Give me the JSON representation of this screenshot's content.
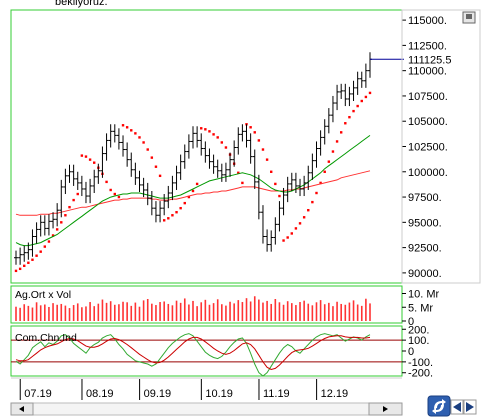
{
  "header_caption": "bekliyoruz.",
  "current_value_label": "111125.5",
  "colors": {
    "frame": "#33cc33",
    "bar": "#000000",
    "sar_dots": "#ff0000",
    "ma_long": "#ff3333",
    "ma_short": "#009900",
    "cci_line": "#33aa33",
    "cci_signal": "#cc0000",
    "cci_levels": "#990000",
    "current_line": "#000099",
    "volume_bar": "#ff3333"
  },
  "chart_data": [
    {
      "type": "line",
      "panel": "price",
      "y_ticks": [
        "115000.",
        "112500.",
        "110000.",
        "107500.",
        "105000.",
        "102500.",
        "100000.",
        "97500.",
        "95000.",
        "92500.",
        "90000."
      ],
      "ylim": [
        89000,
        116000
      ],
      "x_ticks": [
        "07.19",
        "08.19",
        "09.19",
        "10.19",
        "11.19",
        "12.19"
      ],
      "last_value": 111125.5,
      "series": [
        {
          "series_type": "ohlc",
          "close": [
            91500,
            91800,
            92000,
            92300,
            93600,
            94300,
            95000,
            94400,
            95100,
            95300,
            96200,
            98500,
            99600,
            100000,
            99300,
            98900,
            98300,
            97600,
            98600,
            99500,
            100100,
            101800,
            103100,
            104000,
            103600,
            102900,
            102200,
            101200,
            100200,
            99400,
            98700,
            98200,
            97400,
            96400,
            95700,
            96400,
            97100,
            97900,
            98900,
            99900,
            101000,
            102000,
            103000,
            103800,
            103100,
            102300,
            101600,
            101000,
            100500,
            100100,
            99700,
            100200,
            101200,
            102400,
            103700,
            104000,
            103100,
            101500,
            99000,
            96000,
            93600,
            92800,
            93500,
            94800,
            96400,
            97700,
            98800,
            99200,
            98600,
            98300,
            98900,
            99900,
            101100,
            102300,
            103400,
            104500,
            105600,
            106800,
            107900,
            108000,
            107200,
            107700,
            108300,
            109200,
            109000,
            110000,
            111125
          ]
        },
        {
          "name": "",
          "series_type": "ma_long",
          "values": [
            95800,
            95700,
            95700,
            95700,
            95700,
            95700,
            95800,
            95800,
            95800,
            95900,
            95900,
            96000,
            96100,
            96200,
            96300,
            96400,
            96500,
            96500,
            96600,
            96700,
            96800,
            96900,
            97000,
            97100,
            97200,
            97200,
            97300,
            97300,
            97400,
            97400,
            97400,
            97400,
            97400,
            97300,
            97300,
            97200,
            97200,
            97200,
            97300,
            97300,
            97400,
            97500,
            97600,
            97700,
            97800,
            97800,
            97900,
            97900,
            98000,
            98000,
            98100,
            98100,
            98200,
            98300,
            98400,
            98500,
            98500,
            98500,
            98500,
            98400,
            98300,
            98200,
            98100,
            98100,
            98100,
            98100,
            98200,
            98200,
            98300,
            98300,
            98400,
            98500,
            98600,
            98700,
            98800,
            98900,
            99000,
            99100,
            99200,
            99400,
            99500,
            99600,
            99700,
            99800,
            99900,
            100000,
            100100
          ]
        },
        {
          "name": "",
          "series_type": "ma_short",
          "values": [
            93000,
            92800,
            92700,
            92700,
            92800,
            92900,
            93000,
            93200,
            93400,
            93600,
            93800,
            94100,
            94400,
            94700,
            95000,
            95300,
            95600,
            95900,
            96200,
            96500,
            96800,
            97100,
            97300,
            97500,
            97600,
            97700,
            97800,
            97800,
            97900,
            97900,
            97900,
            97800,
            97700,
            97600,
            97500,
            97400,
            97400,
            97400,
            97500,
            97600,
            97700,
            97900,
            98100,
            98300,
            98500,
            98700,
            98900,
            99100,
            99200,
            99300,
            99400,
            99500,
            99600,
            99700,
            99800,
            99900,
            99800,
            99700,
            99500,
            99300,
            99000,
            98700,
            98400,
            98200,
            98100,
            98000,
            98000,
            98100,
            98300,
            98500,
            98700,
            99000,
            99300,
            99600,
            99900,
            100300,
            100600,
            100900,
            101200,
            101500,
            101800,
            102100,
            102400,
            102700,
            103000,
            103300,
            103600
          ]
        },
        {
          "name": "",
          "series_type": "sar",
          "values": [
            90200,
            90400,
            90700,
            91000,
            91300,
            91700,
            92100,
            92600,
            93100,
            93700,
            94300,
            95000,
            95700,
            96500,
            97200,
            97800,
            101600,
            101500,
            101200,
            100900,
            100400,
            99800,
            99000,
            98200,
            97800,
            97500,
            104600,
            104400,
            104100,
            103800,
            103400,
            102900,
            102200,
            101400,
            100500,
            99600,
            95200,
            95400,
            95700,
            96000,
            96400,
            96900,
            97500,
            98100,
            98800,
            104300,
            104200,
            104000,
            103700,
            103400,
            102900,
            102400,
            101700,
            100800,
            99900,
            98900,
            104700,
            104400,
            103900,
            103100,
            102200,
            101200,
            100000,
            98800,
            97600,
            93200,
            93500,
            93900,
            94400,
            94900,
            95500,
            96200,
            97000,
            97900,
            98900,
            100000,
            101000,
            102000,
            103000,
            103900,
            104800,
            105400,
            106000,
            106500,
            107000,
            107400,
            107800
          ]
        }
      ]
    },
    {
      "type": "bar",
      "panel": "volume",
      "title": "Ag.Ort x Vol",
      "y_ticks": [
        "10. Mr",
        "5. Mr",
        "0"
      ],
      "ylim": [
        0,
        12
      ],
      "values": [
        5.2,
        4.8,
        6.1,
        5.5,
        4.9,
        6.8,
        5.7,
        6.0,
        5.1,
        6.5,
        5.9,
        6.2,
        5.6,
        4.7,
        5.8,
        6.4,
        5.0,
        5.3,
        6.9,
        5.4,
        6.3,
        7.8,
        6.6,
        7.2,
        5.9,
        6.1,
        7.0,
        6.8,
        5.5,
        6.7,
        5.2,
        7.5,
        8.0,
        6.3,
        5.8,
        6.9,
        7.1,
        6.2,
        5.7,
        7.4,
        6.6,
        8.2,
        6.0,
        7.3,
        5.4,
        6.8,
        7.7,
        5.9,
        6.5,
        7.9,
        6.1,
        5.6,
        7.0,
        6.4,
        7.6,
        6.9,
        8.3,
        7.1,
        9.0,
        7.8,
        6.7,
        7.3,
        6.2,
        8.0,
        6.8,
        5.9,
        7.2,
        6.5,
        5.8,
        6.9,
        7.4,
        6.3,
        5.7,
        6.8,
        7.6,
        6.1,
        6.6,
        5.4,
        7.0,
        6.2,
        5.9,
        6.7,
        7.5,
        6.0,
        5.5,
        8.1,
        6.4
      ]
    },
    {
      "type": "line",
      "panel": "cci",
      "title": "Com.Chn.Ind",
      "y_ticks": [
        "200.",
        "100.",
        "0",
        "-100.",
        "-200."
      ],
      "ylim": [
        -230,
        230
      ],
      "series": [
        {
          "name": "",
          "values": [
            -95,
            -120,
            -80,
            -40,
            30,
            60,
            85,
            40,
            75,
            60,
            90,
            140,
            150,
            120,
            70,
            40,
            10,
            -20,
            30,
            60,
            80,
            120,
            140,
            150,
            110,
            60,
            20,
            -30,
            -60,
            -90,
            -100,
            -110,
            -120,
            -140,
            -120,
            -70,
            -20,
            30,
            70,
            100,
            130,
            150,
            160,
            140,
            90,
            40,
            -10,
            -40,
            -60,
            -70,
            -50,
            -10,
            40,
            80,
            110,
            120,
            70,
            -20,
            -120,
            -200,
            -230,
            -200,
            -140,
            -80,
            -20,
            30,
            60,
            40,
            0,
            -20,
            20,
            60,
            100,
            130,
            150,
            160,
            150,
            140,
            150,
            120,
            90,
            110,
            130,
            120,
            100,
            130,
            150
          ]
        },
        {
          "name": "",
          "values": [
            -80,
            -90,
            -90,
            -80,
            -50,
            -20,
            10,
            30,
            45,
            55,
            65,
            85,
            105,
            115,
            110,
            95,
            70,
            45,
            35,
            35,
            45,
            65,
            90,
            110,
            115,
            105,
            85,
            60,
            30,
            0,
            -30,
            -55,
            -80,
            -100,
            -110,
            -105,
            -85,
            -55,
            -20,
            15,
            50,
            85,
            110,
            125,
            125,
            110,
            85,
            55,
            25,
            0,
            -20,
            -30,
            -20,
            5,
            35,
            65,
            75,
            60,
            20,
            -40,
            -100,
            -150,
            -170,
            -160,
            -130,
            -90,
            -50,
            -15,
            5,
            10,
            15,
            25,
            45,
            70,
            95,
            115,
            130,
            135,
            140,
            140,
            130,
            125,
            125,
            125,
            120,
            120,
            125
          ]
        }
      ]
    }
  ]
}
